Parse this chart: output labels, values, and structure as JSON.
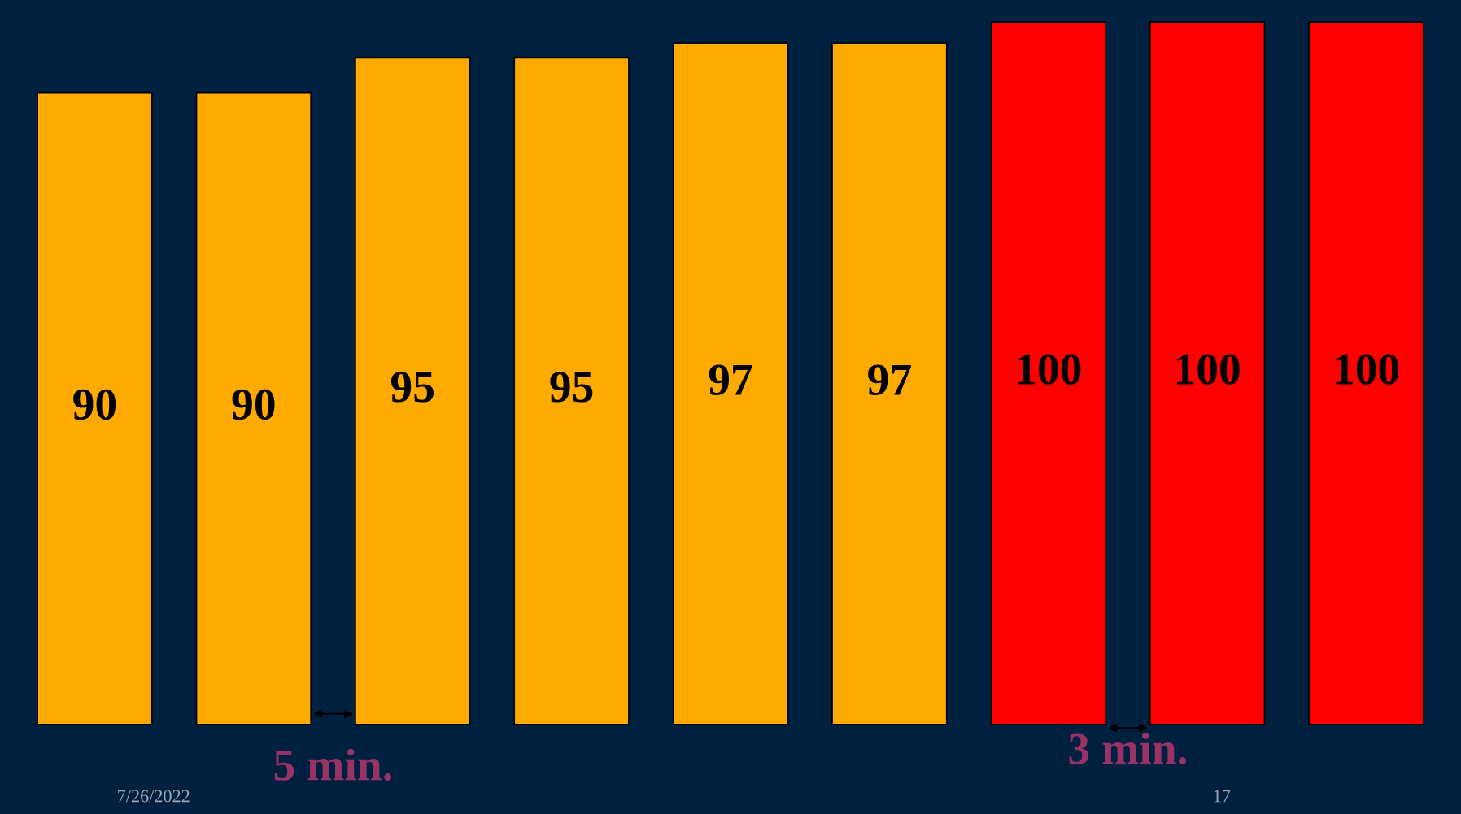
{
  "chart_data": {
    "type": "bar",
    "categories": [
      null,
      null,
      null,
      null,
      null,
      null,
      null,
      null,
      null
    ],
    "values": [
      90,
      90,
      95,
      95,
      97,
      97,
      100,
      100,
      100
    ],
    "colors": [
      "#ffaa00",
      "#ffaa00",
      "#ffaa00",
      "#ffaa00",
      "#ffaa00",
      "#ffaa00",
      "#ff0000",
      "#ff0000",
      "#ff0000"
    ],
    "data_labels": true,
    "annotations": [
      "5 min.",
      "3 min.",
      "7/26/2022",
      "17"
    ]
  }
}
